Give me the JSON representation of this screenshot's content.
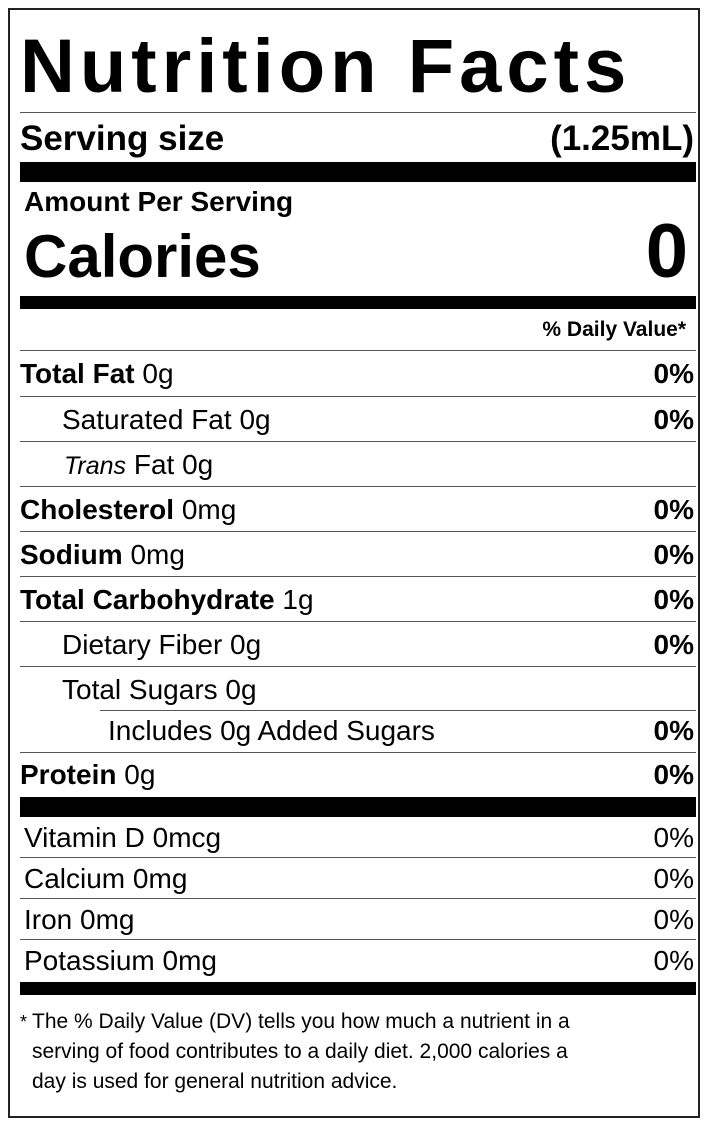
{
  "title": "Nutrition Facts",
  "serving_size": {
    "label": "Serving size",
    "value": "(1.25mL)"
  },
  "amount_per_serving": "Amount Per Serving",
  "calories": {
    "label": "Calories",
    "value": "0"
  },
  "daily_value_header": "% Daily Value*",
  "nutrients": [
    {
      "name": "Total Fat",
      "amount": "0g",
      "dv": "0%"
    },
    {
      "name": "Saturated Fat",
      "amount": "0g",
      "dv": "0%"
    },
    {
      "name_italic": "Trans",
      "name": "Fat",
      "amount": "0g"
    },
    {
      "name": "Cholesterol",
      "amount": "0mg",
      "dv": "0%"
    },
    {
      "name": "Sodium",
      "amount": "0mg",
      "dv": "0%"
    },
    {
      "name": "Total Carbohydrate",
      "amount": "1g",
      "dv": "0%"
    },
    {
      "name": "Dietary Fiber",
      "amount": "0g",
      "dv": "0%"
    },
    {
      "name": "Total Sugars",
      "amount": "0g"
    },
    {
      "prefix": "Includes",
      "amount": "0g",
      "name": "Added Sugars",
      "dv": "0%"
    },
    {
      "name": "Protein",
      "amount": "0g",
      "dv": "0%"
    }
  ],
  "vitamins": [
    {
      "name": "Vitamin D",
      "amount": "0mcg",
      "dv": "0%"
    },
    {
      "name": "Calcium",
      "amount": "0mg",
      "dv": "0%"
    },
    {
      "name": "Iron",
      "amount": "0mg",
      "dv": "0%"
    },
    {
      "name": "Potassium",
      "amount": "0mg",
      "dv": "0%"
    }
  ],
  "footnote": {
    "marker": "*",
    "lines": [
      "The % Daily Value (DV) tells you how much a nutrient in a",
      "serving of food contributes to a daily diet. 2,000 calories a",
      "day is used for general nutrition advice."
    ]
  }
}
